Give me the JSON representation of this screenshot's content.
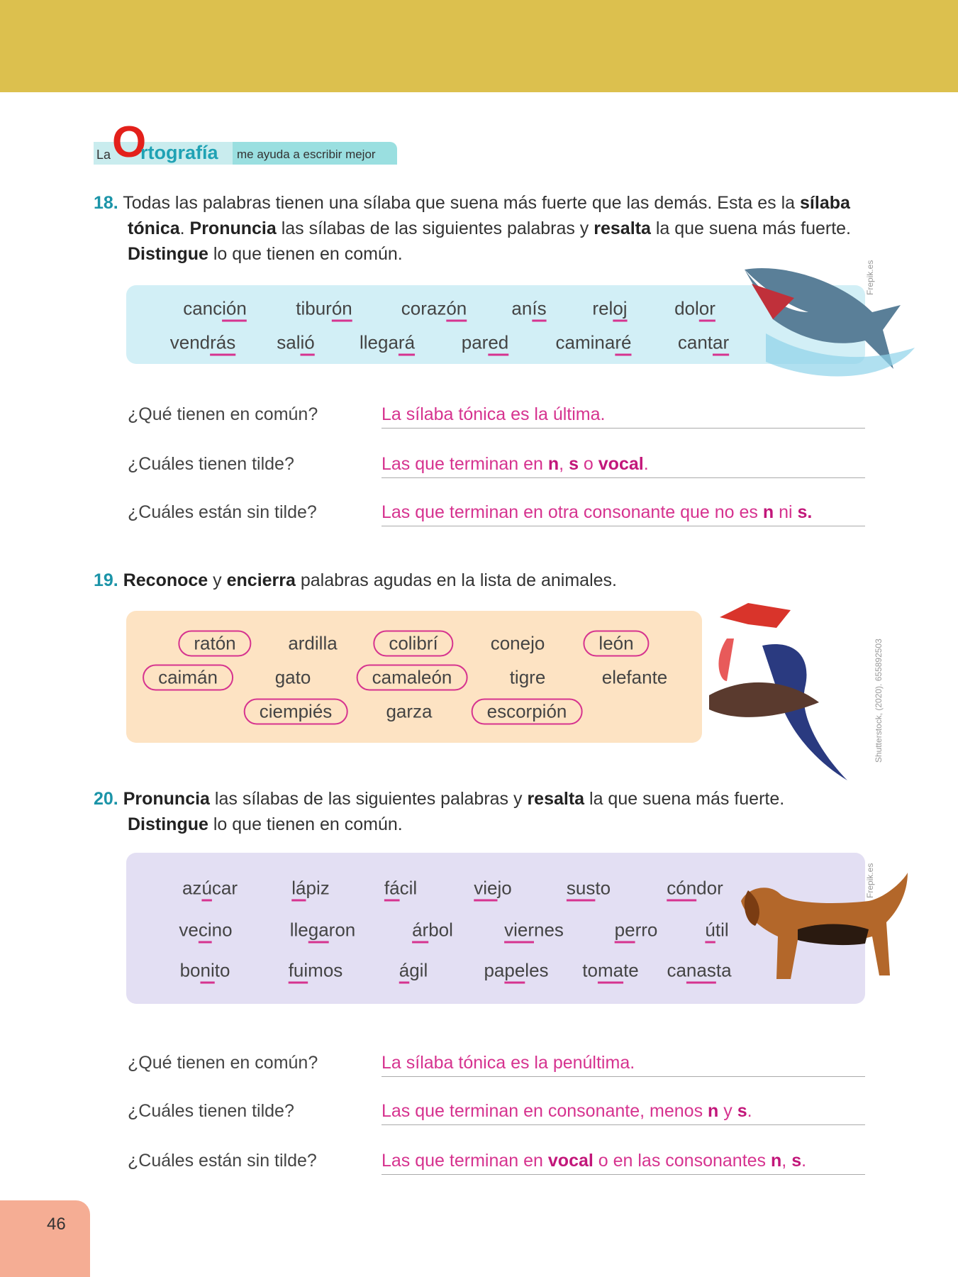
{
  "header": {
    "la": "La",
    "o": "O",
    "rtografia": "rtografía",
    "subtitle": "me ayuda a escribir mejor"
  },
  "q18": {
    "num": "18.",
    "t1": "Todas las palabras tienen una sílaba que suena más fuerte que las demás. Esta es la ",
    "b1": "sílaba tónica",
    "t2": ". ",
    "b2": "Pronuncia",
    "t3": " las sílabas de las siguientes palabras y ",
    "b3": "resalta",
    "t4": " la que suena más fuerte. ",
    "b4": "Distingue",
    "t5": " lo que tienen en común.",
    "words": [
      [
        [
          "canc",
          "ión",
          ""
        ],
        [
          "tibur",
          "ón",
          ""
        ],
        [
          "coraz",
          "ón",
          ""
        ],
        [
          "an",
          "ís",
          ""
        ],
        [
          "rel",
          "oj",
          ""
        ],
        [
          "dol",
          "or",
          ""
        ]
      ],
      [
        [
          "vend",
          "rás",
          ""
        ],
        [
          "sal",
          "ió",
          ""
        ],
        [
          "llega",
          "rá",
          ""
        ],
        [
          "par",
          "ed",
          ""
        ],
        [
          "camina",
          "ré",
          ""
        ],
        [
          "cant",
          "ar",
          ""
        ]
      ]
    ],
    "answers": [
      {
        "label": "¿Qué tienen en común?",
        "parts": [
          [
            "La sílaba tónica es la última.",
            false
          ]
        ]
      },
      {
        "label": "¿Cuáles tienen tilde?",
        "parts": [
          [
            "Las que terminan en ",
            false
          ],
          [
            "n",
            true
          ],
          [
            ", ",
            false
          ],
          [
            "s",
            true
          ],
          [
            " o ",
            false
          ],
          [
            "vocal",
            true
          ],
          [
            ".",
            false
          ]
        ]
      },
      {
        "label": "¿Cuáles están sin tilde?",
        "parts": [
          [
            "Las que terminan en otra consonante que no es ",
            false
          ],
          [
            "n",
            true
          ],
          [
            " ni ",
            false
          ],
          [
            "s.",
            true
          ]
        ]
      }
    ]
  },
  "q19": {
    "num": "19.",
    "b1": "Reconoce",
    "t1": " y ",
    "b2": "encierra",
    "t2": " palabras agudas en la lista de animales.",
    "words": [
      [
        [
          "ratón",
          true
        ],
        [
          "ardilla",
          false
        ],
        [
          "colibrí",
          true
        ],
        [
          "conejo",
          false
        ],
        [
          "león",
          true
        ]
      ],
      [
        [
          "caimán",
          true
        ],
        [
          "gato",
          false
        ],
        [
          "camaleón",
          true
        ],
        [
          "tigre",
          false
        ],
        [
          "elefante",
          false
        ]
      ],
      [
        [
          "ciempiés",
          true
        ],
        [
          "garza",
          false
        ],
        [
          "escorpión",
          true
        ]
      ]
    ]
  },
  "q20": {
    "num": "20.",
    "b1": "Pronuncia",
    "t1": " las sílabas de las siguientes palabras y ",
    "b2": "resalta",
    "t2": " la que suena más fuerte. ",
    "b3": "Distingue",
    "t3": " lo que tienen en común.",
    "words": [
      [
        [
          "az",
          "ú",
          "car"
        ],
        [
          "",
          "lá",
          "piz"
        ],
        [
          "",
          "fá",
          "cil"
        ],
        [
          "",
          "vie",
          "jo"
        ],
        [
          "",
          "sus",
          "to"
        ],
        [
          "",
          "cón",
          "dor"
        ]
      ],
      [
        [
          "ve",
          "ci",
          "no"
        ],
        [
          "lle",
          "ga",
          "ron"
        ],
        [
          "",
          "ár",
          "bol"
        ],
        [
          "",
          "vier",
          "nes"
        ],
        [
          "",
          "pe",
          "rro"
        ],
        [
          "",
          "ú",
          "til"
        ]
      ],
      [
        [
          "bo",
          "ni",
          "to"
        ],
        [
          "",
          "fui",
          "mos"
        ],
        [
          "",
          "á",
          "gil"
        ],
        [
          "pa",
          "pe",
          "les"
        ],
        [
          "to",
          "ma",
          "te"
        ],
        [
          "ca",
          "nas",
          "ta"
        ]
      ]
    ],
    "answers": [
      {
        "label": "¿Qué tienen en común?",
        "parts": [
          [
            "La sílaba tónica es la penúltima.",
            false
          ]
        ]
      },
      {
        "label": "¿Cuáles tienen tilde?",
        "parts": [
          [
            "Las que terminan en consonante, menos ",
            false
          ],
          [
            "n",
            true
          ],
          [
            " y ",
            false
          ],
          [
            "s",
            true
          ],
          [
            ".",
            false
          ]
        ]
      },
      {
        "label": "¿Cuáles están sin tilde?",
        "parts": [
          [
            "Las que terminan en ",
            false
          ],
          [
            "vocal",
            true
          ],
          [
            " o en las consonantes ",
            false
          ],
          [
            "n",
            true
          ],
          [
            ", ",
            false
          ],
          [
            "s",
            true
          ],
          [
            ".",
            false
          ]
        ]
      }
    ]
  },
  "credits": {
    "shark": "Frepik.es",
    "bird": "Shutterstock, (2020). 655892503",
    "dog": "Frepik.es"
  },
  "page_number": "46",
  "colors": {
    "band": "#dcc04e",
    "accent": "#d6338f",
    "box18": "#d2eff6",
    "box19": "#fde3c3",
    "box20": "#e3dff3"
  }
}
